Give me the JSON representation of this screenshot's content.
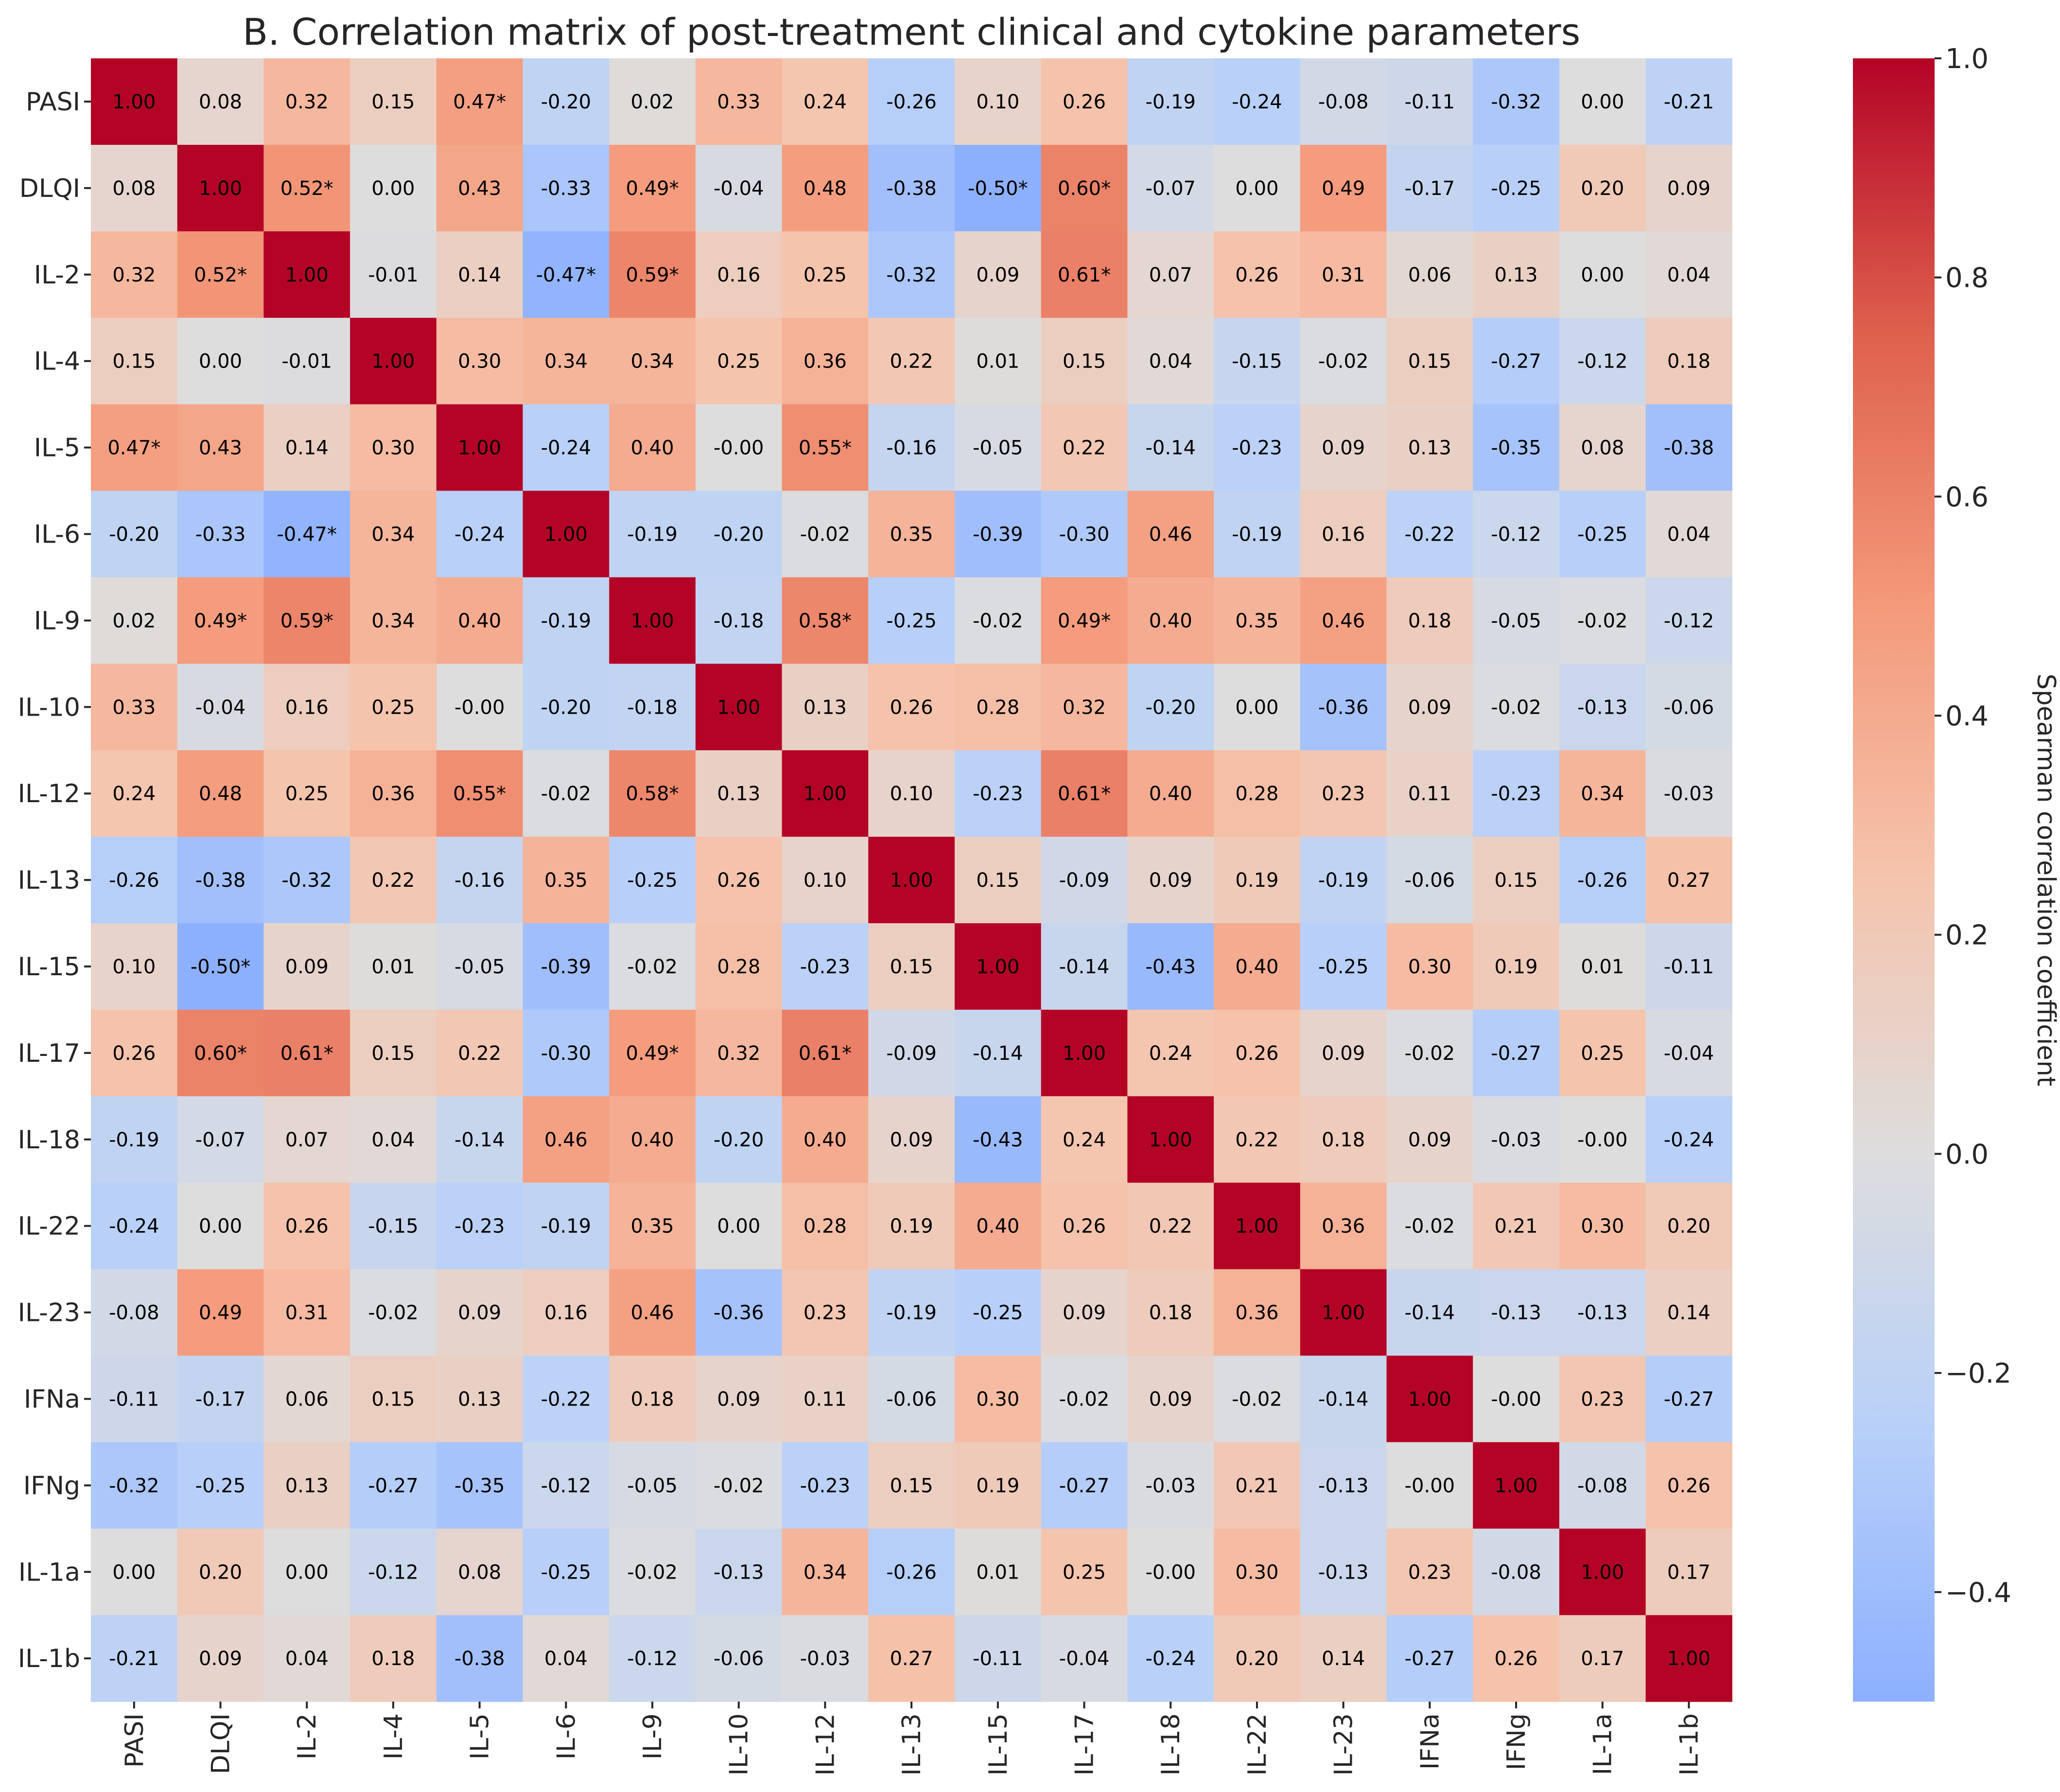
{
  "chart_data": {
    "type": "heatmap",
    "title": "B. Correlation matrix of post-treatment clinical and cytokine parameters",
    "labels": [
      "PASI",
      "DLQI",
      "IL-2",
      "IL-4",
      "IL-5",
      "IL-6",
      "IL-9",
      "IL-10",
      "IL-12",
      "IL-13",
      "IL-15",
      "IL-17",
      "IL-18",
      "IL-22",
      "IL-23",
      "IFNa",
      "IFNg",
      "IL-1a",
      "IL-1b"
    ],
    "cells": [
      [
        "1.00",
        "0.08",
        "0.32",
        "0.15",
        "0.47*",
        "-0.20",
        "0.02",
        "0.33",
        "0.24",
        "-0.26",
        "0.10",
        "0.26",
        "-0.19",
        "-0.24",
        "-0.08",
        "-0.11",
        "-0.32",
        "0.00",
        "-0.21"
      ],
      [
        "0.08",
        "1.00",
        "0.52*",
        "0.00",
        "0.43",
        "-0.33",
        "0.49*",
        "-0.04",
        "0.48",
        "-0.38",
        "-0.50*",
        "0.60*",
        "-0.07",
        "0.00",
        "0.49",
        "-0.17",
        "-0.25",
        "0.20",
        "0.09"
      ],
      [
        "0.32",
        "0.52*",
        "1.00",
        "-0.01",
        "0.14",
        "-0.47*",
        "0.59*",
        "0.16",
        "0.25",
        "-0.32",
        "0.09",
        "0.61*",
        "0.07",
        "0.26",
        "0.31",
        "0.06",
        "0.13",
        "0.00",
        "0.04"
      ],
      [
        "0.15",
        "0.00",
        "-0.01",
        "1.00",
        "0.30",
        "0.34",
        "0.34",
        "0.25",
        "0.36",
        "0.22",
        "0.01",
        "0.15",
        "0.04",
        "-0.15",
        "-0.02",
        "0.15",
        "-0.27",
        "-0.12",
        "0.18"
      ],
      [
        "0.47*",
        "0.43",
        "0.14",
        "0.30",
        "1.00",
        "-0.24",
        "0.40",
        "-0.00",
        "0.55*",
        "-0.16",
        "-0.05",
        "0.22",
        "-0.14",
        "-0.23",
        "0.09",
        "0.13",
        "-0.35",
        "0.08",
        "-0.38"
      ],
      [
        "-0.20",
        "-0.33",
        "-0.47*",
        "0.34",
        "-0.24",
        "1.00",
        "-0.19",
        "-0.20",
        "-0.02",
        "0.35",
        "-0.39",
        "-0.30",
        "0.46",
        "-0.19",
        "0.16",
        "-0.22",
        "-0.12",
        "-0.25",
        "0.04"
      ],
      [
        "0.02",
        "0.49*",
        "0.59*",
        "0.34",
        "0.40",
        "-0.19",
        "1.00",
        "-0.18",
        "0.58*",
        "-0.25",
        "-0.02",
        "0.49*",
        "0.40",
        "0.35",
        "0.46",
        "0.18",
        "-0.05",
        "-0.02",
        "-0.12"
      ],
      [
        "0.33",
        "-0.04",
        "0.16",
        "0.25",
        "-0.00",
        "-0.20",
        "-0.18",
        "1.00",
        "0.13",
        "0.26",
        "0.28",
        "0.32",
        "-0.20",
        "0.00",
        "-0.36",
        "0.09",
        "-0.02",
        "-0.13",
        "-0.06"
      ],
      [
        "0.24",
        "0.48",
        "0.25",
        "0.36",
        "0.55*",
        "-0.02",
        "0.58*",
        "0.13",
        "1.00",
        "0.10",
        "-0.23",
        "0.61*",
        "0.40",
        "0.28",
        "0.23",
        "0.11",
        "-0.23",
        "0.34",
        "-0.03"
      ],
      [
        "-0.26",
        "-0.38",
        "-0.32",
        "0.22",
        "-0.16",
        "0.35",
        "-0.25",
        "0.26",
        "0.10",
        "1.00",
        "0.15",
        "-0.09",
        "0.09",
        "0.19",
        "-0.19",
        "-0.06",
        "0.15",
        "-0.26",
        "0.27"
      ],
      [
        "0.10",
        "-0.50*",
        "0.09",
        "0.01",
        "-0.05",
        "-0.39",
        "-0.02",
        "0.28",
        "-0.23",
        "0.15",
        "1.00",
        "-0.14",
        "-0.43",
        "0.40",
        "-0.25",
        "0.30",
        "0.19",
        "0.01",
        "-0.11"
      ],
      [
        "0.26",
        "0.60*",
        "0.61*",
        "0.15",
        "0.22",
        "-0.30",
        "0.49*",
        "0.32",
        "0.61*",
        "-0.09",
        "-0.14",
        "1.00",
        "0.24",
        "0.26",
        "0.09",
        "-0.02",
        "-0.27",
        "0.25",
        "-0.04"
      ],
      [
        "-0.19",
        "-0.07",
        "0.07",
        "0.04",
        "-0.14",
        "0.46",
        "0.40",
        "-0.20",
        "0.40",
        "0.09",
        "-0.43",
        "0.24",
        "1.00",
        "0.22",
        "0.18",
        "0.09",
        "-0.03",
        "-0.00",
        "-0.24"
      ],
      [
        "-0.24",
        "0.00",
        "0.26",
        "-0.15",
        "-0.23",
        "-0.19",
        "0.35",
        "0.00",
        "0.28",
        "0.19",
        "0.40",
        "0.26",
        "0.22",
        "1.00",
        "0.36",
        "-0.02",
        "0.21",
        "0.30",
        "0.20"
      ],
      [
        "-0.08",
        "0.49",
        "0.31",
        "-0.02",
        "0.09",
        "0.16",
        "0.46",
        "-0.36",
        "0.23",
        "-0.19",
        "-0.25",
        "0.09",
        "0.18",
        "0.36",
        "1.00",
        "-0.14",
        "-0.13",
        "-0.13",
        "0.14"
      ],
      [
        "-0.11",
        "-0.17",
        "0.06",
        "0.15",
        "0.13",
        "-0.22",
        "0.18",
        "0.09",
        "0.11",
        "-0.06",
        "0.30",
        "-0.02",
        "0.09",
        "-0.02",
        "-0.14",
        "1.00",
        "-0.00",
        "0.23",
        "-0.27"
      ],
      [
        "-0.32",
        "-0.25",
        "0.13",
        "-0.27",
        "-0.35",
        "-0.12",
        "-0.05",
        "-0.02",
        "-0.23",
        "0.15",
        "0.19",
        "-0.27",
        "-0.03",
        "0.21",
        "-0.13",
        "-0.00",
        "1.00",
        "-0.08",
        "0.26"
      ],
      [
        "0.00",
        "0.20",
        "0.00",
        "-0.12",
        "0.08",
        "-0.25",
        "-0.02",
        "-0.13",
        "0.34",
        "-0.26",
        "0.01",
        "0.25",
        "-0.00",
        "0.30",
        "-0.13",
        "0.23",
        "-0.08",
        "1.00",
        "0.17"
      ],
      [
        "-0.21",
        "0.09",
        "0.04",
        "0.18",
        "-0.38",
        "0.04",
        "-0.12",
        "-0.06",
        "-0.03",
        "0.27",
        "-0.11",
        "-0.04",
        "-0.24",
        "0.20",
        "0.14",
        "-0.27",
        "0.26",
        "0.17",
        "1.00"
      ]
    ],
    "colorbar": {
      "label": "Spearman correlation coefficient",
      "range": [
        -0.5,
        1.0
      ],
      "ticks": [
        "1.0",
        "0.8",
        "0.6",
        "0.4",
        "0.2",
        "0.0",
        "−0.2",
        "−0.4"
      ],
      "tick_values": [
        1.0,
        0.8,
        0.6,
        0.4,
        0.2,
        0.0,
        -0.2,
        -0.4
      ],
      "colormap": "coolwarm",
      "center": 0.0
    },
    "legend": "right"
  }
}
